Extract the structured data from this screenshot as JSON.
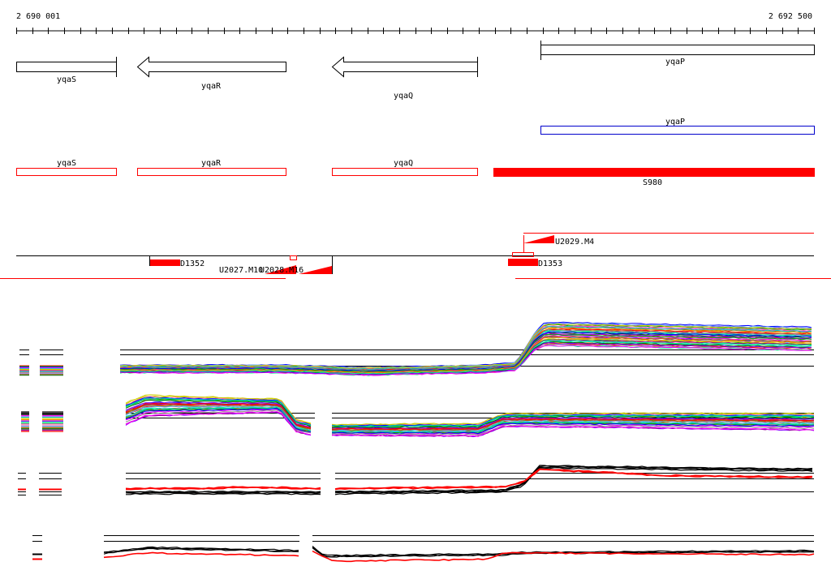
{
  "coords": {
    "start": "2 690 001",
    "end": "2 692 500"
  },
  "genes_top": [
    {
      "label": "yqaS"
    },
    {
      "label": "yqaR"
    },
    {
      "label": "yqaQ"
    },
    {
      "label": "yqaP"
    }
  ],
  "gene_blue": {
    "label": "yqaP"
  },
  "genes_red": [
    {
      "label": "yqaS"
    },
    {
      "label": "yqaR"
    },
    {
      "label": "yqaQ"
    },
    {
      "label": "S980"
    }
  ],
  "features": {
    "d1352": "D1352",
    "d1353": "D1353",
    "u2027": "U2027.M10",
    "u2028": "U2028.M16",
    "u2029": "U2029.M4"
  },
  "colors": {
    "red": "#ff0000",
    "blue": "#0000cc",
    "black": "#000000",
    "palette": [
      "#ff0000",
      "#00aa00",
      "#0000ff",
      "#ff00ff",
      "#00cccc",
      "#cccc00",
      "#ff8800",
      "#8800ff",
      "#00ff88",
      "#888888",
      "#ff66aa",
      "#66aaff",
      "#aa6600",
      "#006600",
      "#990099"
    ]
  }
}
